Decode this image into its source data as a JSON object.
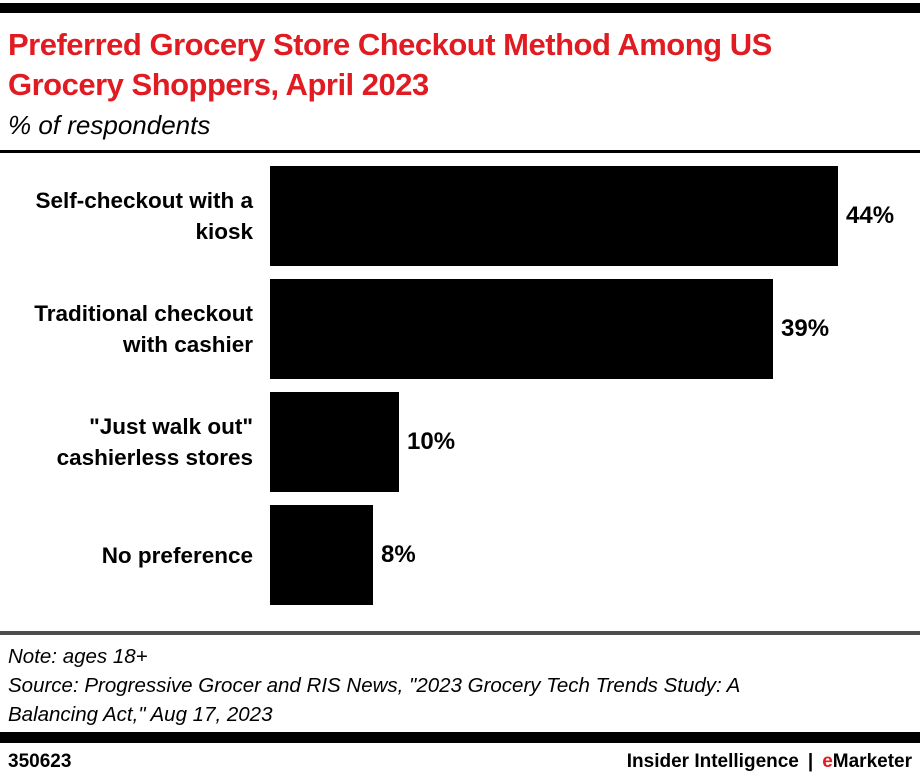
{
  "header": {
    "title_display": "Preferred Grocery Store Checkout Method Among US\nGrocery Shoppers, April 2023",
    "subtitle": "% of respondents"
  },
  "chart_data": {
    "type": "bar",
    "orientation": "horizontal",
    "title": "Preferred Grocery Store Checkout Method Among US Grocery Shoppers, April 2023",
    "subtitle": "% of respondents",
    "categories": [
      "Self-checkout with a kiosk",
      "Traditional checkout with cashier",
      "\"Just walk out\" cashierless stores",
      "No preference"
    ],
    "display_labels": [
      "Self-checkout with a\nkiosk",
      "Traditional checkout\nwith cashier",
      "\"Just walk out\"\ncashierless stores",
      "No preference"
    ],
    "values": [
      44,
      39,
      10,
      8
    ],
    "value_labels": [
      "44%",
      "39%",
      "10%",
      "8%"
    ],
    "xlim": [
      0,
      50
    ],
    "grid": false,
    "legend": false,
    "bar_color": "#000000"
  },
  "notes": {
    "note": "Note: ages 18+",
    "source": "Source: Progressive Grocer and RIS News, \"2023 Grocery Tech Trends Study: A\nBalancing Act,\" Aug 17, 2023"
  },
  "footer": {
    "chart_id": "350623",
    "brand_left": "Insider Intelligence",
    "separator": "|",
    "brand_e": "e",
    "brand_rest": "Marketer"
  },
  "colors": {
    "accent_red": "#E01B22",
    "bar_black": "#000000",
    "divider_gray": "#4D4D4D"
  }
}
